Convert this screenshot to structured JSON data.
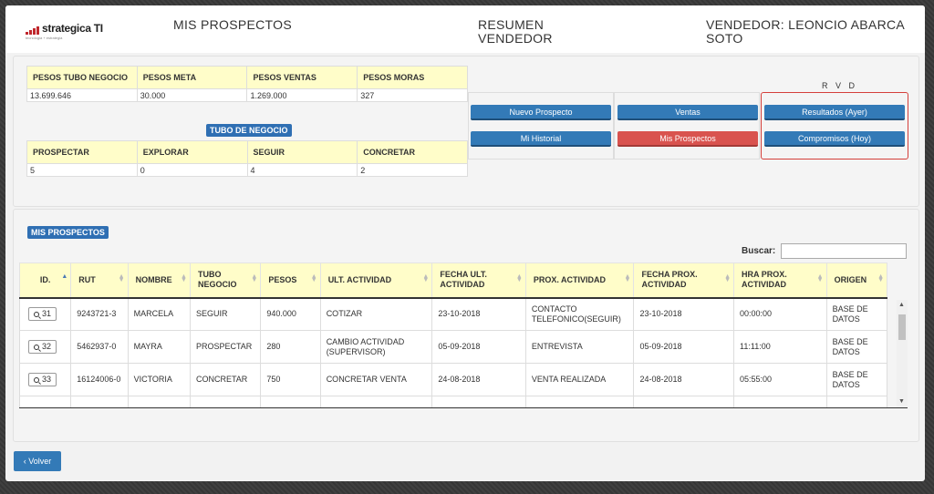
{
  "header": {
    "logo_text": "strategica TI",
    "logo_sub": "tecnologia + estrategia",
    "title": "MIS PROSPECTOS",
    "resumen_line1": "RESUMEN",
    "resumen_line2": "VENDEDOR",
    "vendedor_line1": "VENDEDOR: LEONCIO ABARCA",
    "vendedor_line2": "SOTO"
  },
  "pesos": {
    "headers": [
      "PESOS TUBO NEGOCIO",
      "PESOS META",
      "PESOS VENTAS",
      "PESOS MORAS"
    ],
    "values": [
      "13.699.646",
      "30.000",
      "1.269.000",
      "327"
    ]
  },
  "tubo": {
    "badge": "TUBO DE NEGOCIO",
    "headers": [
      "PROSPECTAR",
      "EXPLORAR",
      "SEGUIR",
      "CONCRETAR"
    ],
    "values": [
      "5",
      "0",
      "4",
      "2"
    ]
  },
  "actions": {
    "nuevo_prospecto": "Nuevo Prospecto",
    "mi_historial": "Mi Historial",
    "ventas": "Ventas",
    "mis_prospectos": "Mis Prospectos",
    "resultados": "Resultados (Ayer)",
    "compromisos": "Compromisos (Hoy)",
    "rvd_label": "R V D"
  },
  "list": {
    "badge": "MIS PROSPECTOS",
    "search_label": "Buscar:",
    "search_value": "",
    "columns": [
      "ID.",
      "RUT",
      "NOMBRE",
      "TUBO NEGOCIO",
      "PESOS",
      "ULT. ACTIVIDAD",
      "FECHA ULT. ACTIVIDAD",
      "PROX. ACTIVIDAD",
      "FECHA PROX. ACTIVIDAD",
      "HRA PROX. ACTIVIDAD",
      "ORIGEN"
    ],
    "rows": [
      {
        "id": "31",
        "rut": "9243721-3",
        "nombre": "MARCELA",
        "tubo": "SEGUIR",
        "pesos": "940.000",
        "ult": "COTIZAR",
        "fecha_ult": "23-10-2018",
        "prox": "CONTACTO TELEFONICO(SEGUIR)",
        "fecha_prox": "23-10-2018",
        "hora": "00:00:00",
        "origen": "BASE DE DATOS"
      },
      {
        "id": "32",
        "rut": "5462937-0",
        "nombre": "MAYRA",
        "tubo": "PROSPECTAR",
        "pesos": "280",
        "ult": "CAMBIO ACTIVIDAD (SUPERVISOR)",
        "fecha_ult": "05-09-2018",
        "prox": "ENTREVISTA",
        "fecha_prox": "05-09-2018",
        "hora": "11:11:00",
        "origen": "BASE DE DATOS"
      },
      {
        "id": "33",
        "rut": "16124006-0",
        "nombre": "VICTORIA",
        "tubo": "CONCRETAR",
        "pesos": "750",
        "ult": "CONCRETAR VENTA",
        "fecha_ult": "24-08-2018",
        "prox": "VENTA REALIZADA",
        "fecha_prox": "24-08-2018",
        "hora": "05:55:00",
        "origen": "BASE DE DATOS"
      },
      {
        "id": "",
        "rut": "",
        "nombre": "",
        "tubo": "",
        "pesos": "",
        "ult": "",
        "fecha_ult": "",
        "prox": "",
        "fecha_prox": "",
        "hora": "",
        "origen": ""
      }
    ]
  },
  "footer": {
    "back_label": "Volver"
  }
}
